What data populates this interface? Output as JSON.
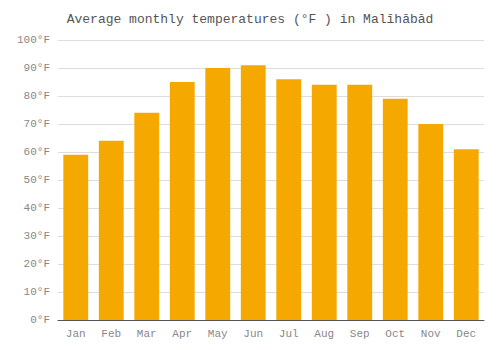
{
  "chart_data": {
    "type": "bar",
    "title": "Average monthly temperatures (°F ) in Malīhābād",
    "categories": [
      "Jan",
      "Feb",
      "Mar",
      "Apr",
      "May",
      "Jun",
      "Jul",
      "Aug",
      "Sep",
      "Oct",
      "Nov",
      "Dec"
    ],
    "values": [
      59,
      64,
      74,
      85,
      90,
      91,
      86,
      84,
      84,
      79,
      70,
      61
    ],
    "color": "#F5A800",
    "ylim": [
      0,
      100
    ],
    "yticks": [
      {
        "value": 0,
        "label": "0°F"
      },
      {
        "value": 10,
        "label": "10°F"
      },
      {
        "value": 20,
        "label": "20°F"
      },
      {
        "value": 30,
        "label": "30°F"
      },
      {
        "value": 40,
        "label": "40°F"
      },
      {
        "value": 50,
        "label": "50°F"
      },
      {
        "value": 60,
        "label": "60°F"
      },
      {
        "value": 70,
        "label": "70°F"
      },
      {
        "value": 80,
        "label": "80°F"
      },
      {
        "value": 90,
        "label": "90°F"
      },
      {
        "value": 100,
        "label": "100°F"
      }
    ],
    "grid": true
  }
}
